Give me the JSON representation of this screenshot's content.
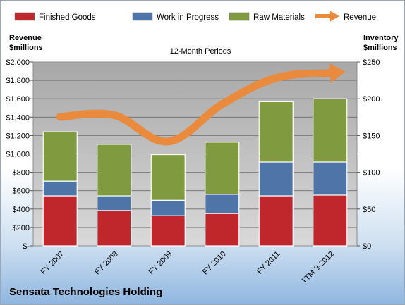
{
  "chart_data": {
    "type": "bar",
    "stacked": true,
    "title": "12-Month Periods",
    "company": "Sensata Technologies Holding",
    "left_axis_label_line1": "Revenue",
    "left_axis_label_line2": "$millions",
    "right_axis_label_line1": "Inventory",
    "right_axis_label_line2": "$millions",
    "categories": [
      "FY 2007",
      "FY 2008",
      "FY 2009",
      "FY 2010",
      "FY 2011",
      "TTM 3-2012"
    ],
    "series": [
      {
        "name": "Finished Goods",
        "axis": "right",
        "color": "#c0272d",
        "values": [
          68,
          48,
          41,
          44,
          68,
          69
        ]
      },
      {
        "name": "Work in Progress",
        "axis": "right",
        "color": "#4f74a8",
        "values": [
          20,
          20,
          21,
          26,
          46,
          45
        ]
      },
      {
        "name": "Raw Materials",
        "axis": "right",
        "color": "#7f9a3f",
        "values": [
          67,
          70,
          62,
          71,
          82,
          86
        ]
      }
    ],
    "line_series": {
      "name": "Revenue",
      "axis": "left",
      "color": "#e98a3c",
      "values": [
        1403,
        1422,
        1135,
        1540,
        1826,
        1880
      ]
    },
    "left_axis": {
      "min": 0,
      "max": 2000,
      "ticks": [
        "$-",
        "$200",
        "$400",
        "$600",
        "$800",
        "$1,000",
        "$1,200",
        "$1,400",
        "$1,600",
        "$1,800",
        "$2,000"
      ]
    },
    "right_axis": {
      "min": 0,
      "max": 250,
      "ticks": [
        "$0",
        "$50",
        "$100",
        "$150",
        "$200",
        "$250"
      ]
    },
    "legend_position": "top",
    "grid": true
  }
}
